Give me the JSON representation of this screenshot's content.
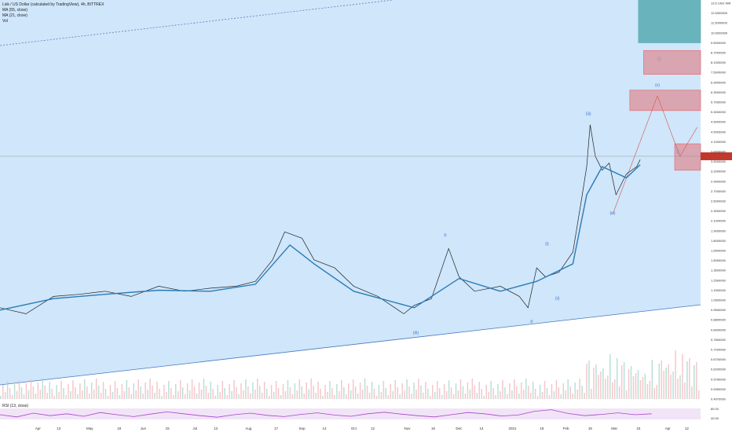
{
  "legend": {
    "title": "Lisk / US Dollar (calculated by TradingView), 4h, BITTREX",
    "ma1": "MA (55, close)",
    "ma2": "MA (21, close)",
    "vol": "Vol"
  },
  "axis": {
    "unit_label": "13.5 USD INR"
  },
  "rsi": {
    "label": "RSI (13, close)",
    "ticks": [
      "80.00",
      "40.00"
    ]
  },
  "colors": {
    "background_channel": "#cfe6fb",
    "price": "#222222",
    "ma": "#2a7bb5",
    "wave_label": "#3b74c8",
    "red_zone": "#e07a80",
    "teal_zone": "#69b3bd",
    "rsi_line": "#a845c9",
    "rsi_band": "#f1e4f7"
  },
  "chart_data": {
    "type": "line",
    "yscale": "log",
    "ylim": [
      0.45,
      13.5
    ],
    "y_ticks": [
      "13.5 USD INR",
      "12.5000000",
      "11.5000000",
      "10.5000000",
      "9.5000000",
      "8.7000000",
      "8.1000000",
      "7.5000000",
      "6.9000000",
      "6.3000000",
      "5.7000000",
      "5.3000000",
      "4.9000000",
      "4.5000000",
      "4.1000000",
      "3.8000000",
      "3.5000000",
      "3.2000000",
      "2.9000000",
      "2.7000000",
      "2.5000000",
      "2.3000000",
      "2.1000000",
      "1.9000000",
      "1.8000000",
      "1.6500000",
      "1.5000000",
      "1.3500000",
      "1.2500000",
      "1.1500000",
      "1.0500000",
      "0.9500000",
      "0.8800000",
      "0.8400000",
      "0.7800000",
      "0.7200000",
      "0.6700000",
      "0.6200000",
      "0.5750000",
      "0.5350000",
      "0.4970000"
    ],
    "x_ticks": [
      "Apr",
      "13",
      "May",
      "18",
      "Jun",
      "15",
      "Jul",
      "13",
      "Aug",
      "17",
      "Sep",
      "14",
      "Oct",
      "12",
      "Nov",
      "16",
      "Dec",
      "14",
      "2021",
      "18",
      "Feb",
      "15",
      "Mar",
      "15",
      "Apr",
      "12"
    ],
    "x_tick_dates": [
      "2020-04-01",
      "2020-04-13",
      "2020-05-01",
      "2020-05-18",
      "2020-06-01",
      "2020-06-15",
      "2020-07-01",
      "2020-07-13",
      "2020-08-01",
      "2020-08-17",
      "2020-09-01",
      "2020-09-14",
      "2020-10-01",
      "2020-10-12",
      "2020-11-01",
      "2020-11-16",
      "2020-12-01",
      "2020-12-14",
      "2021-01-01",
      "2021-01-18",
      "2021-02-01",
      "2021-02-15",
      "2021-03-01",
      "2021-03-15",
      "2021-04-01",
      "2021-04-12"
    ],
    "series": [
      {
        "name": "Lisk / US Dollar",
        "x": [
          "2020-03-10",
          "2020-03-25",
          "2020-04-10",
          "2020-04-25",
          "2020-05-10",
          "2020-05-25",
          "2020-06-10",
          "2020-06-25",
          "2020-07-10",
          "2020-07-25",
          "2020-08-05",
          "2020-08-15",
          "2020-08-22",
          "2020-09-01",
          "2020-09-08",
          "2020-09-20",
          "2020-10-01",
          "2020-10-15",
          "2020-10-30",
          "2020-11-05",
          "2020-11-15",
          "2020-11-25",
          "2020-12-01",
          "2020-12-10",
          "2020-12-25",
          "2021-01-05",
          "2021-01-10",
          "2021-01-15",
          "2021-01-20",
          "2021-01-28",
          "2021-02-05",
          "2021-02-10",
          "2021-02-13",
          "2021-02-15",
          "2021-02-18",
          "2021-02-22",
          "2021-02-26",
          "2021-03-02",
          "2021-03-08",
          "2021-03-14",
          "2021-03-16"
        ],
        "y": [
          1.0,
          0.95,
          1.1,
          1.12,
          1.15,
          1.1,
          1.2,
          1.15,
          1.18,
          1.2,
          1.25,
          1.5,
          1.9,
          1.8,
          1.5,
          1.4,
          1.2,
          1.1,
          0.95,
          1.02,
          1.08,
          1.65,
          1.3,
          1.15,
          1.2,
          1.1,
          1.0,
          1.4,
          1.3,
          1.35,
          1.6,
          2.5,
          3.3,
          4.7,
          3.6,
          3.2,
          3.4,
          2.6,
          3.1,
          3.3,
          3.5
        ]
      },
      {
        "name": "MA (21, close)",
        "x": [
          "2020-03-10",
          "2020-04-10",
          "2020-05-10",
          "2020-06-10",
          "2020-07-10",
          "2020-08-05",
          "2020-08-25",
          "2020-09-08",
          "2020-10-01",
          "2020-11-05",
          "2020-12-01",
          "2020-12-25",
          "2021-01-15",
          "2021-02-05",
          "2021-02-13",
          "2021-02-22",
          "2021-03-08",
          "2021-03-16"
        ],
        "y": [
          0.98,
          1.08,
          1.12,
          1.16,
          1.15,
          1.22,
          1.7,
          1.45,
          1.15,
          1.0,
          1.28,
          1.15,
          1.25,
          1.45,
          2.6,
          3.3,
          3.0,
          3.35
        ]
      }
    ],
    "wave_labels": [
      {
        "text": "(iii)",
        "x": "2021-02-14",
        "y": 5.1
      },
      {
        "text": "(iv)",
        "x": "2021-02-28",
        "y": 2.2
      },
      {
        "text": "(ii)",
        "x": "2021-01-27",
        "y": 1.07
      },
      {
        "text": "(i)",
        "x": "2021-01-21",
        "y": 1.7
      },
      {
        "text": "(III)",
        "x": "2020-11-06",
        "y": 0.8
      },
      {
        "text": "①",
        "x": "2020-11-23",
        "y": 1.83
      },
      {
        "text": "②",
        "x": "2021-01-12",
        "y": 0.88
      },
      {
        "text": "(v)",
        "x": "2021-03-26",
        "y": 6.5
      },
      {
        "text": "ⓘ",
        "x": "2021-04-07",
        "y": 3.7
      },
      {
        "text": "ⓘ",
        "x": "2021-03-27",
        "y": 8.1
      }
    ],
    "zones": [
      {
        "color": "teal",
        "x": [
          "2021-03-15",
          "2021-04-20"
        ],
        "y": [
          9.4,
          13.5
        ]
      },
      {
        "color": "red",
        "x": [
          "2021-03-18",
          "2021-04-20"
        ],
        "y": [
          7.2,
          8.8
        ]
      },
      {
        "color": "red",
        "x": [
          "2021-03-10",
          "2021-04-20"
        ],
        "y": [
          5.3,
          6.3
        ]
      },
      {
        "color": "red",
        "x": [
          "2021-04-05",
          "2021-04-20"
        ],
        "y": [
          3.2,
          4.0
        ]
      }
    ],
    "current_price": 3.6,
    "rsi_values": [
      55,
      48,
      60,
      52,
      58,
      50,
      62,
      55,
      49,
      57,
      64,
      58,
      52,
      47,
      55,
      60,
      53,
      49,
      56,
      61,
      54,
      50,
      58,
      63,
      57,
      52,
      48,
      55,
      62,
      58,
      51,
      54,
      66,
      71,
      59,
      52,
      56,
      61,
      55,
      58
    ]
  }
}
